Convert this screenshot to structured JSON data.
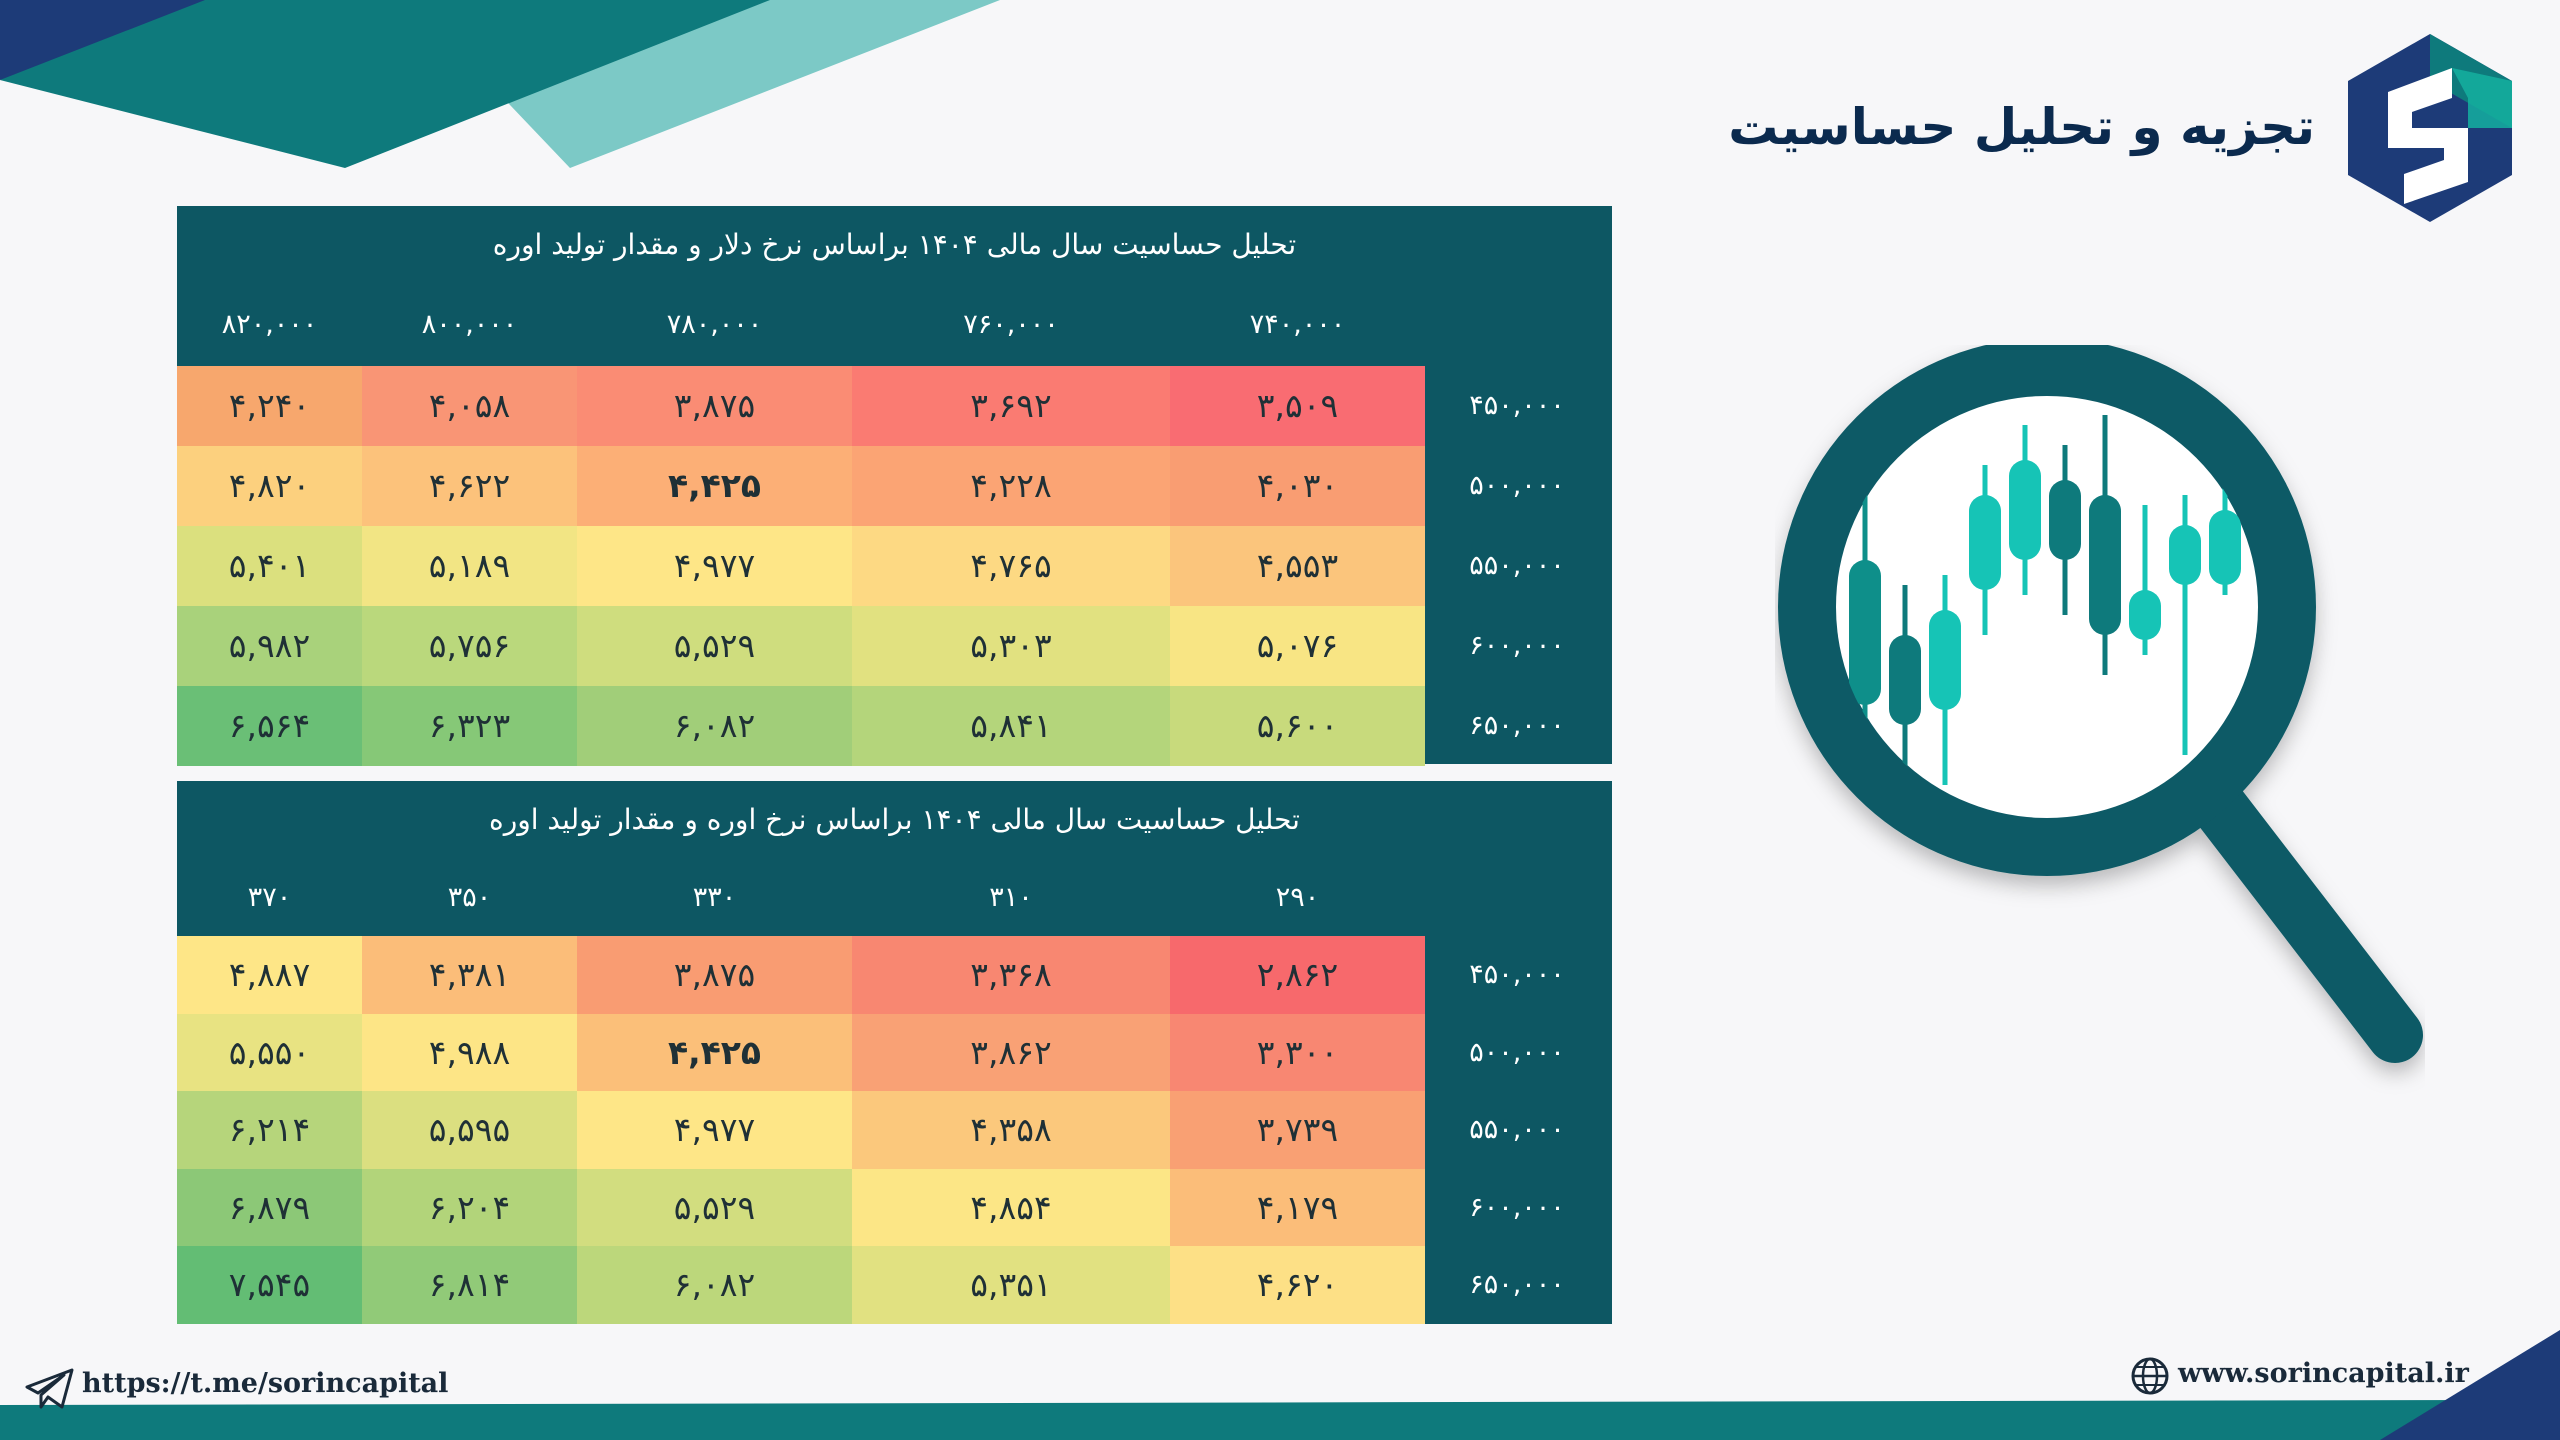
{
  "header": {
    "title": "تجزیه و تحلیل حساسیت",
    "brand_colors": {
      "navy": "#1d3b78",
      "teal": "#0e7a7c",
      "light_teal": "#7cc9c6",
      "table_bg": "#0d5763"
    }
  },
  "tables": [
    {
      "caption": "تحلیل حساسیت سال مالی ۱۴۰۴ براساس نرخ دلار و مقدار تولید اوره",
      "columns": [
        "۸۲۰,۰۰۰",
        "۸۰۰,۰۰۰",
        "۷۸۰,۰۰۰",
        "۷۶۰,۰۰۰",
        "۷۴۰,۰۰۰"
      ],
      "rows": [
        {
          "label": "۴۵۰,۰۰۰",
          "cells": [
            "۴,۲۴۰",
            "۴,۰۵۸",
            "۳,۸۷۵",
            "۳,۶۹۲",
            "۳,۵۰۹"
          ],
          "colors": [
            "#f7a76d",
            "#f99575",
            "#fa8c74",
            "#fa7b72",
            "#f96c72"
          ]
        },
        {
          "label": "۵۰۰,۰۰۰",
          "cells": [
            "۴,۸۲۰",
            "۴,۶۲۲",
            "۴,۴۲۵",
            "۴,۲۲۸",
            "۴,۰۳۰"
          ],
          "colors": [
            "#fcd07e",
            "#fcc27b",
            "#fcaf76",
            "#fba474",
            "#f99d72"
          ]
        },
        {
          "label": "۵۵۰,۰۰۰",
          "cells": [
            "۵,۴۰۱",
            "۵,۱۸۹",
            "۴,۹۷۷",
            "۴,۷۶۵",
            "۴,۵۵۳"
          ],
          "colors": [
            "#dbe07e",
            "#f2e584",
            "#fee687",
            "#fdd983",
            "#fbc57c"
          ]
        },
        {
          "label": "۶۰۰,۰۰۰",
          "cells": [
            "۵,۹۸۲",
            "۵,۷۵۶",
            "۵,۵۲۹",
            "۵,۳۰۳",
            "۵,۰۷۶"
          ],
          "colors": [
            "#a9d27b",
            "#bad87c",
            "#cfdd7e",
            "#e1e180",
            "#f8e584"
          ]
        },
        {
          "label": "۶۵۰,۰۰۰",
          "cells": [
            "۶,۵۶۴",
            "۶,۳۲۳",
            "۶,۰۸۲",
            "۵,۸۴۱",
            "۵,۶۰۰"
          ],
          "colors": [
            "#6abf76",
            "#86c877",
            "#a1ce79",
            "#b4d57b",
            "#c8da7c"
          ]
        }
      ],
      "bold_cell": [
        1,
        2
      ]
    },
    {
      "caption": "تحلیل حساسیت سال مالی ۱۴۰۴ براساس نرخ اوره و مقدار تولید اوره",
      "columns": [
        "۳۷۰",
        "۳۵۰",
        "۳۳۰",
        "۳۱۰",
        "۲۹۰"
      ],
      "rows": [
        {
          "label": "۴۵۰,۰۰۰",
          "cells": [
            "۴,۸۸۷",
            "۴,۳۸۱",
            "۳,۸۷۵",
            "۳,۳۶۸",
            "۲,۸۶۲"
          ],
          "colors": [
            "#fee687",
            "#fbbd79",
            "#f99c72",
            "#f88771",
            "#f7696c"
          ]
        },
        {
          "label": "۵۰۰,۰۰۰",
          "cells": [
            "۵,۵۵۰",
            "۴,۹۸۸",
            "۴,۴۲۵",
            "۳,۸۶۲",
            "۳,۳۰۰"
          ],
          "colors": [
            "#e8e382",
            "#fde586",
            "#fbbf79",
            "#f9a175",
            "#f88772"
          ]
        },
        {
          "label": "۵۵۰,۰۰۰",
          "cells": [
            "۶,۲۱۴",
            "۵,۵۹۵",
            "۴,۹۷۷",
            "۴,۳۵۸",
            "۳,۷۳۹"
          ],
          "colors": [
            "#b6d57b",
            "#dbdf80",
            "#fee687",
            "#fbc87c",
            "#f9a073"
          ]
        },
        {
          "label": "۶۰۰,۰۰۰",
          "cells": [
            "۶,۸۷۹",
            "۶,۲۰۴",
            "۵,۵۲۹",
            "۴,۸۵۴",
            "۴,۱۷۹"
          ],
          "colors": [
            "#8cc877",
            "#b2d47a",
            "#d2dd7f",
            "#fce686",
            "#fbbd79"
          ]
        },
        {
          "label": "۶۵۰,۰۰۰",
          "cells": [
            "۷,۵۴۵",
            "۶,۸۱۴",
            "۶,۰۸۲",
            "۵,۳۵۱",
            "۴,۶۲۰"
          ],
          "colors": [
            "#63bd74",
            "#91ca78",
            "#bcd77b",
            "#e1e181",
            "#fde086"
          ]
        }
      ],
      "bold_cell": [
        1,
        2
      ]
    }
  ],
  "footer": {
    "telegram": "https://t.me/sorincapital",
    "website": "www.sorincapital.ir",
    "telegram_icon": "paper-plane-icon",
    "website_icon": "globe-icon"
  }
}
